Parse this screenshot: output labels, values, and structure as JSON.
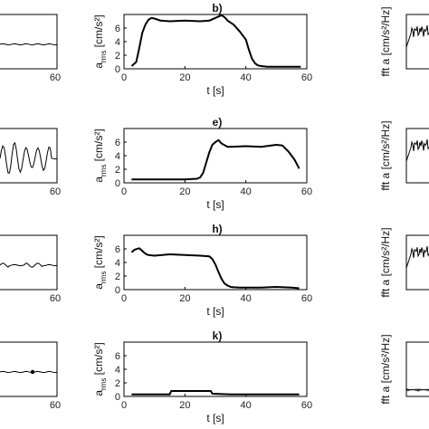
{
  "chart_data": [
    {
      "type": "line",
      "position": "left-column",
      "panels": [
        {
          "x_tick_labels": [
            "60"
          ],
          "series": [
            {
              "x": [
                0,
                60
              ],
              "y": [
                0,
                0
              ]
            }
          ]
        },
        {
          "x_tick_labels": [
            "60"
          ],
          "series": [
            {
              "x": [
                0,
                60
              ],
              "y": [
                0,
                0
              ]
            }
          ]
        },
        {
          "x_tick_labels": [
            "60"
          ],
          "series": [
            {
              "x": [
                0,
                60
              ],
              "y": [
                0,
                0
              ]
            }
          ]
        },
        {
          "x_tick_labels": [
            "60"
          ],
          "series": [
            {
              "x": [
                0,
                60
              ],
              "y": [
                0,
                0
              ]
            }
          ]
        }
      ]
    },
    {
      "type": "line",
      "position": "middle-column",
      "xlabel": "t [s]",
      "ylabel": "a",
      "ylabel_subscript": "rms",
      "ylabel_unit": "[cm/s²]",
      "xlim": [
        0,
        60
      ],
      "ylim": [
        0,
        8
      ],
      "x_ticks": [
        0,
        20,
        40,
        60
      ],
      "y_ticks": [
        0,
        2,
        4,
        6
      ],
      "panels": [
        {
          "title": "b)",
          "series": [
            {
              "x": [
                2.5,
                4,
                5,
                6,
                7,
                8,
                9,
                10,
                12,
                15,
                20,
                25,
                28,
                30,
                32,
                33,
                34,
                36,
                38,
                40,
                41,
                42,
                43,
                44,
                45,
                47,
                50,
                55,
                58
              ],
              "y": [
                0.4,
                1.0,
                3.0,
                5.3,
                6.5,
                7.2,
                7.5,
                7.4,
                7.1,
                7.0,
                7.1,
                7.0,
                7.1,
                7.5,
                7.9,
                7.6,
                7.1,
                6.5,
                5.5,
                4.3,
                2.8,
                1.5,
                0.8,
                0.5,
                0.4,
                0.3,
                0.3,
                0.3,
                0.3
              ]
            }
          ]
        },
        {
          "title": "e)",
          "series": [
            {
              "x": [
                2.5,
                10,
                20,
                24,
                25,
                26,
                27,
                28,
                29,
                30,
                31,
                32,
                34,
                40,
                45,
                50,
                52,
                54,
                56,
                57.5
              ],
              "y": [
                0.5,
                0.5,
                0.5,
                0.6,
                0.8,
                1.5,
                3.0,
                4.5,
                5.6,
                6.0,
                6.3,
                5.8,
                5.3,
                5.4,
                5.3,
                5.6,
                5.5,
                4.6,
                3.4,
                2.1
              ]
            }
          ]
        },
        {
          "title": "h)",
          "series": [
            {
              "x": [
                2.5,
                3.5,
                5,
                6,
                7,
                8,
                10,
                15,
                20,
                25,
                28,
                29,
                30,
                31,
                32,
                33,
                34,
                35,
                36,
                38,
                40,
                45,
                50,
                55,
                57.5
              ],
              "y": [
                5.5,
                5.9,
                6.1,
                5.7,
                5.3,
                5.1,
                5.0,
                5.2,
                5.1,
                5.0,
                4.9,
                4.5,
                3.7,
                2.6,
                1.6,
                0.9,
                0.6,
                0.4,
                0.35,
                0.3,
                0.3,
                0.3,
                0.4,
                0.3,
                0.2
              ]
            }
          ]
        },
        {
          "title": "k)",
          "series": [
            {
              "x": [
                2.5,
                10,
                15,
                15.5,
                20,
                25,
                28.5,
                29,
                35,
                40,
                45,
                50,
                55,
                57.5
              ],
              "y": [
                0.3,
                0.3,
                0.3,
                0.8,
                0.8,
                0.8,
                0.8,
                0.4,
                0.3,
                0.3,
                0.3,
                0.3,
                0.3,
                0.3
              ]
            }
          ]
        }
      ]
    },
    {
      "type": "line",
      "position": "right-column",
      "ylabel": "fft a [cm/s²/Hz]",
      "panels": [
        {
          "series": [
            {
              "x": [
                0
              ],
              "y": [
                0
              ]
            }
          ]
        },
        {
          "series": [
            {
              "x": [
                0
              ],
              "y": [
                0
              ]
            }
          ]
        },
        {
          "series": [
            {
              "x": [
                0
              ],
              "y": [
                0
              ]
            }
          ]
        },
        {
          "series": [
            {
              "x": [
                0
              ],
              "y": [
                0
              ]
            }
          ]
        }
      ]
    }
  ]
}
